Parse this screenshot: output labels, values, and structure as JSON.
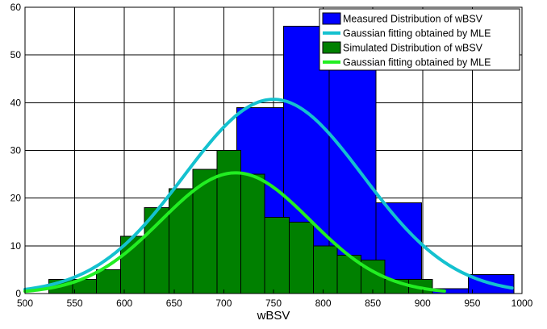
{
  "chart_data": {
    "type": "bar",
    "title": "",
    "xlabel": "wBSV",
    "ylabel": "",
    "xlim": [
      500,
      1000
    ],
    "ylim": [
      0,
      60
    ],
    "xticks": [
      500,
      550,
      600,
      650,
      700,
      750,
      800,
      850,
      900,
      950,
      1000
    ],
    "yticks": [
      0,
      10,
      20,
      30,
      40,
      50,
      60
    ],
    "grid": true,
    "legend_position": "top-right",
    "colors": {
      "measured": "#0000ff",
      "measured_fit": "#14c1cf",
      "simulated": "#008000",
      "simulated_fit": "#22ee22",
      "bar_edge": "#000000"
    },
    "series": [
      {
        "name": "Measured Distribution of wBSV",
        "kind": "histogram",
        "bin_edges": [
          526,
          573,
          620,
          666,
          713,
          760,
          806,
          853,
          899,
          946,
          992
        ],
        "counts": [
          3,
          5,
          12,
          17,
          39,
          56,
          48,
          19,
          1,
          4
        ]
      },
      {
        "name": "Gaussian fitting obtained by MLE",
        "kind": "line",
        "x_range": [
          500,
          990
        ],
        "peak": 40.7,
        "mean": 750,
        "std": 90
      },
      {
        "name": "Simulated Distribution of wBSV",
        "kind": "histogram",
        "bin_edges": [
          524,
          548,
          572,
          596,
          620,
          645,
          669,
          693,
          717,
          741,
          766,
          790,
          814,
          838,
          862,
          886,
          910
        ],
        "counts": [
          3,
          3,
          5,
          12,
          18,
          22,
          26,
          30,
          25,
          16,
          15,
          10,
          8,
          7,
          3,
          3
        ]
      },
      {
        "name": "Gaussian fitting obtained by MLE",
        "kind": "line",
        "x_range": [
          500,
          922
        ],
        "peak": 25.3,
        "mean": 712,
        "std": 75
      }
    ]
  }
}
